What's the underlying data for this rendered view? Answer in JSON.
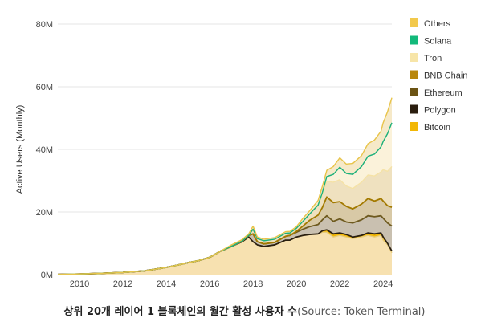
{
  "caption": {
    "main": "상위 20개 레이어 1 블록체인의 월간 활성 사용자 수",
    "source": "(Source: Token Terminal)"
  },
  "chart_data": {
    "type": "area",
    "stacked": true,
    "ylabel": "Active Users (Monthly)",
    "xlabel": "",
    "ylim": [
      0,
      80000000
    ],
    "xlim": [
      2009.0,
      2024.4
    ],
    "yticks": [
      0,
      20000000,
      40000000,
      60000000,
      80000000
    ],
    "ytick_labels": [
      "0M",
      "20M",
      "40M",
      "60M",
      "80M"
    ],
    "xticks": [
      2010,
      2012,
      2014,
      2016,
      2018,
      2020,
      2022,
      2024
    ],
    "xtick_labels": [
      "2010",
      "2012",
      "2014",
      "2016",
      "2018",
      "2020",
      "2022",
      "2024"
    ],
    "grid": "horizontal",
    "legend_position": "right",
    "legend_order": [
      "Others",
      "Solana",
      "Tron",
      "BNB Chain",
      "Ethereum",
      "Polygon",
      "Bitcoin"
    ],
    "x": [
      2009.0,
      2010.0,
      2011.0,
      2012.0,
      2013.0,
      2014.0,
      2014.5,
      2015.0,
      2015.5,
      2016.0,
      2016.5,
      2017.0,
      2017.5,
      2017.8,
      2018.0,
      2018.2,
      2018.5,
      2019.0,
      2019.5,
      2019.7,
      2020.0,
      2020.3,
      2020.6,
      2021.0,
      2021.2,
      2021.4,
      2021.7,
      2022.0,
      2022.3,
      2022.6,
      2023.0,
      2023.3,
      2023.6,
      2023.9,
      2024.0,
      2024.2,
      2024.4
    ],
    "series": [
      {
        "name": "Bitcoin",
        "color": "#f7e1b0",
        "values": [
          0.05,
          0.2,
          0.4,
          0.7,
          1.2,
          2.3,
          3.0,
          3.8,
          4.5,
          5.5,
          7.5,
          9.0,
          10.5,
          12.0,
          10.5,
          9.5,
          9.0,
          9.5,
          11.0,
          11.0,
          12.0,
          12.5,
          12.8,
          13.0,
          13.5,
          13.5,
          12.0,
          12.5,
          12.0,
          11.5,
          12.0,
          12.5,
          12.0,
          12.5,
          11.0,
          9.5,
          7.0
        ]
      },
      {
        "name": "Polygon",
        "color": "#f2b705",
        "values": [
          0,
          0,
          0,
          0,
          0,
          0,
          0,
          0,
          0,
          0,
          0,
          0,
          0,
          0,
          0,
          0,
          0,
          0,
          0,
          0,
          0,
          0,
          0,
          0,
          0.5,
          0.8,
          1.0,
          0.8,
          0.8,
          0.5,
          0.5,
          0.8,
          1.0,
          0.8,
          1.0,
          0.5,
          0.5
        ]
      },
      {
        "name": "Ethereum",
        "color": "#c9c0b0",
        "values": [
          0,
          0,
          0,
          0,
          0,
          0,
          0,
          0,
          0,
          0,
          0,
          0,
          0.2,
          0.5,
          2.5,
          1.0,
          0.8,
          0.8,
          1.2,
          1.5,
          1.5,
          2.0,
          2.5,
          3.0,
          3.5,
          4.5,
          4.0,
          4.5,
          4.0,
          4.5,
          5.0,
          5.5,
          5.5,
          5.5,
          6.0,
          6.5,
          8.0
        ]
      },
      {
        "name": "BNB Chain",
        "color": "#d8c9a6",
        "values": [
          0,
          0,
          0,
          0,
          0,
          0,
          0,
          0,
          0,
          0,
          0,
          0,
          0,
          0,
          0,
          0,
          0,
          0,
          0,
          0,
          0.3,
          1.0,
          2.0,
          3.0,
          4.0,
          6.0,
          6.0,
          5.5,
          5.0,
          4.5,
          5.0,
          5.5,
          5.0,
          5.5,
          5.5,
          5.5,
          6.0
        ]
      },
      {
        "name": "Tron",
        "color": "#efe1bf",
        "values": [
          0,
          0,
          0,
          0,
          0,
          0,
          0,
          0,
          0,
          0,
          0,
          0,
          0,
          0,
          1.5,
          1.0,
          1.0,
          1.0,
          1.0,
          0.8,
          1.0,
          1.5,
          2.0,
          3.0,
          4.0,
          5.0,
          6.5,
          7.0,
          6.5,
          6.5,
          7.0,
          7.5,
          8.0,
          8.5,
          10.0,
          11.0,
          13.0
        ]
      },
      {
        "name": "Solana",
        "color": "#fbf2da",
        "values": [
          0,
          0,
          0,
          0,
          0,
          0,
          0,
          0,
          0,
          0,
          0,
          0,
          0,
          0,
          0,
          0,
          0,
          0,
          0,
          0,
          0,
          0,
          0,
          0.2,
          0.8,
          1.5,
          2.5,
          4.0,
          4.0,
          4.5,
          5.0,
          6.0,
          7.0,
          8.0,
          9.0,
          12.0,
          14.0
        ]
      },
      {
        "name": "Others",
        "color": "#f6e9c8",
        "values": [
          0,
          0,
          0,
          0,
          0,
          0,
          0,
          0,
          0,
          0,
          0,
          0.5,
          0.5,
          0.5,
          1.0,
          0.5,
          0.5,
          0.5,
          0.5,
          0.5,
          0.5,
          1.0,
          1.0,
          1.5,
          2.0,
          2.0,
          2.5,
          3.0,
          3.0,
          3.5,
          3.5,
          4.0,
          4.5,
          5.0,
          6.0,
          7.0,
          8.0
        ]
      }
    ],
    "series_units": "millions of monthly active users",
    "line_colors": {
      "Bitcoin": "#e8cc7a",
      "Polygon": "#2a1f10",
      "Ethereum": "#6e5a1f",
      "BNB Chain": "#a37a00",
      "Tron": "#f5e2a6",
      "Solana": "#1ab07a",
      "Others": "#e8c44a"
    },
    "legend_colors": {
      "Others": "#f2c94c",
      "Solana": "#13b97a",
      "Tron": "#f7e5a8",
      "BNB Chain": "#b8860b",
      "Ethereum": "#6b5313",
      "Polygon": "#2a1d0e",
      "Bitcoin": "#f2b705"
    }
  }
}
